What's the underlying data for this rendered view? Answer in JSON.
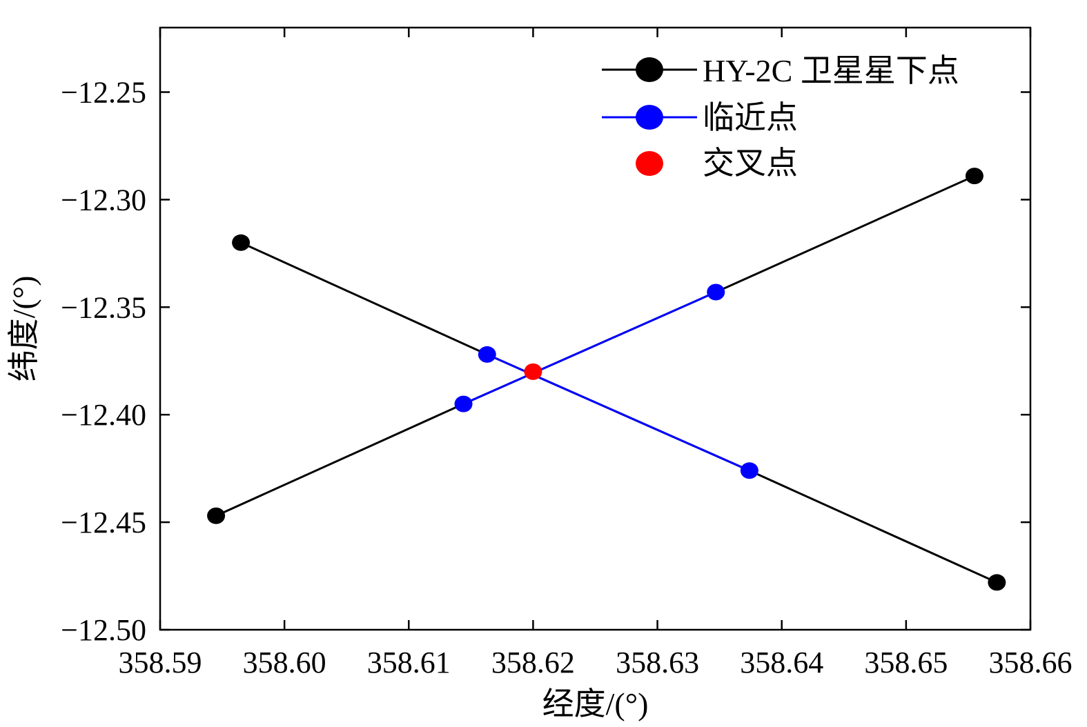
{
  "chart_data": {
    "type": "line",
    "title": "",
    "xlabel": "经度/(°)",
    "ylabel": "纬度/(°)",
    "xlim": [
      358.59,
      358.66
    ],
    "ylim": [
      -12.5,
      -12.22
    ],
    "x_ticks": [
      358.59,
      358.6,
      358.61,
      358.62,
      358.63,
      358.64,
      358.65,
      358.66
    ],
    "x_tick_labels": [
      "358.59",
      "358.60",
      "358.61",
      "358.62",
      "358.63",
      "358.64",
      "358.65",
      "358.66"
    ],
    "y_ticks": [
      -12.25,
      -12.3,
      -12.35,
      -12.4,
      -12.45,
      -12.5
    ],
    "y_tick_labels": [
      "−12.25",
      "−12.30",
      "−12.35",
      "−12.40",
      "−12.45",
      "−12.50"
    ],
    "grid": false,
    "legend_position": "top-right",
    "series": [
      {
        "name": "HY-2C 卫星星下点",
        "color": "#000000",
        "lines": [
          [
            [
              358.5965,
              -12.32
            ],
            [
              358.6163,
              -12.372
            ],
            [
              358.6374,
              -12.426
            ],
            [
              358.6573,
              -12.478
            ]
          ],
          [
            [
              358.5945,
              -12.447
            ],
            [
              358.6144,
              -12.395
            ],
            [
              358.6347,
              -12.343
            ],
            [
              358.6555,
              -12.289
            ]
          ]
        ]
      },
      {
        "name": "临近点",
        "color": "#0000ff",
        "points": [
          [
            358.6163,
            -12.372
          ],
          [
            358.6374,
            -12.426
          ],
          [
            358.6144,
            -12.395
          ],
          [
            358.6347,
            -12.343
          ]
        ]
      },
      {
        "name": "交叉点",
        "color": "#ff0000",
        "points": [
          [
            358.62,
            -12.38
          ]
        ]
      }
    ]
  }
}
